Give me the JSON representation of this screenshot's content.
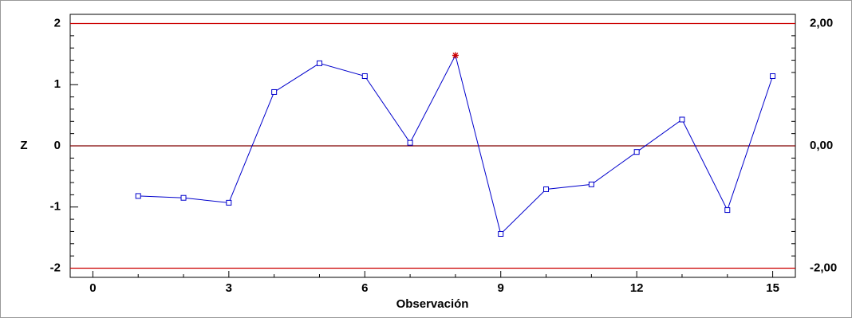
{
  "chart_data": {
    "type": "line",
    "x_label": "Observación",
    "y_label": "Z",
    "x": [
      1,
      2,
      3,
      4,
      5,
      6,
      7,
      8,
      9,
      10,
      11,
      12,
      13,
      14,
      15
    ],
    "series": [
      {
        "color": "#0000cc",
        "values": [
          -0.82,
          -0.85,
          -0.93,
          0.88,
          1.35,
          1.14,
          0.05,
          1.48,
          -1.44,
          -0.71,
          -0.63,
          -0.1,
          0.43,
          -1.05,
          1.14
        ]
      }
    ],
    "outlier_indices": [
      7
    ],
    "outlier_color": "#cc0000",
    "control_lines": [
      2,
      0,
      -2
    ],
    "control_line_colors": [
      "#cc0000",
      "#800000",
      "#cc0000"
    ],
    "xlim": [
      -0.5,
      15.5
    ],
    "xticks": [
      0,
      3,
      6,
      9,
      12,
      15
    ],
    "xminorticks": [
      1,
      2,
      4,
      5,
      7,
      8,
      10,
      11,
      13,
      14
    ],
    "ylim": [
      -2.15,
      2.15
    ],
    "yticks": [
      -2,
      -1,
      0,
      1,
      2
    ],
    "yminorticks": [
      -1.8,
      -1.6,
      -1.4,
      -1.2,
      -0.8,
      -0.6,
      -0.4,
      -0.2,
      0.2,
      0.4,
      0.6,
      0.8,
      1.2,
      1.4,
      1.6,
      1.8
    ],
    "y2lim": [
      -2.15,
      2.15
    ],
    "y2ticks": [
      {
        "value": -2,
        "label": "-2,00"
      },
      {
        "value": 0,
        "label": "0,00"
      },
      {
        "value": 2,
        "label": "2,00"
      }
    ]
  }
}
